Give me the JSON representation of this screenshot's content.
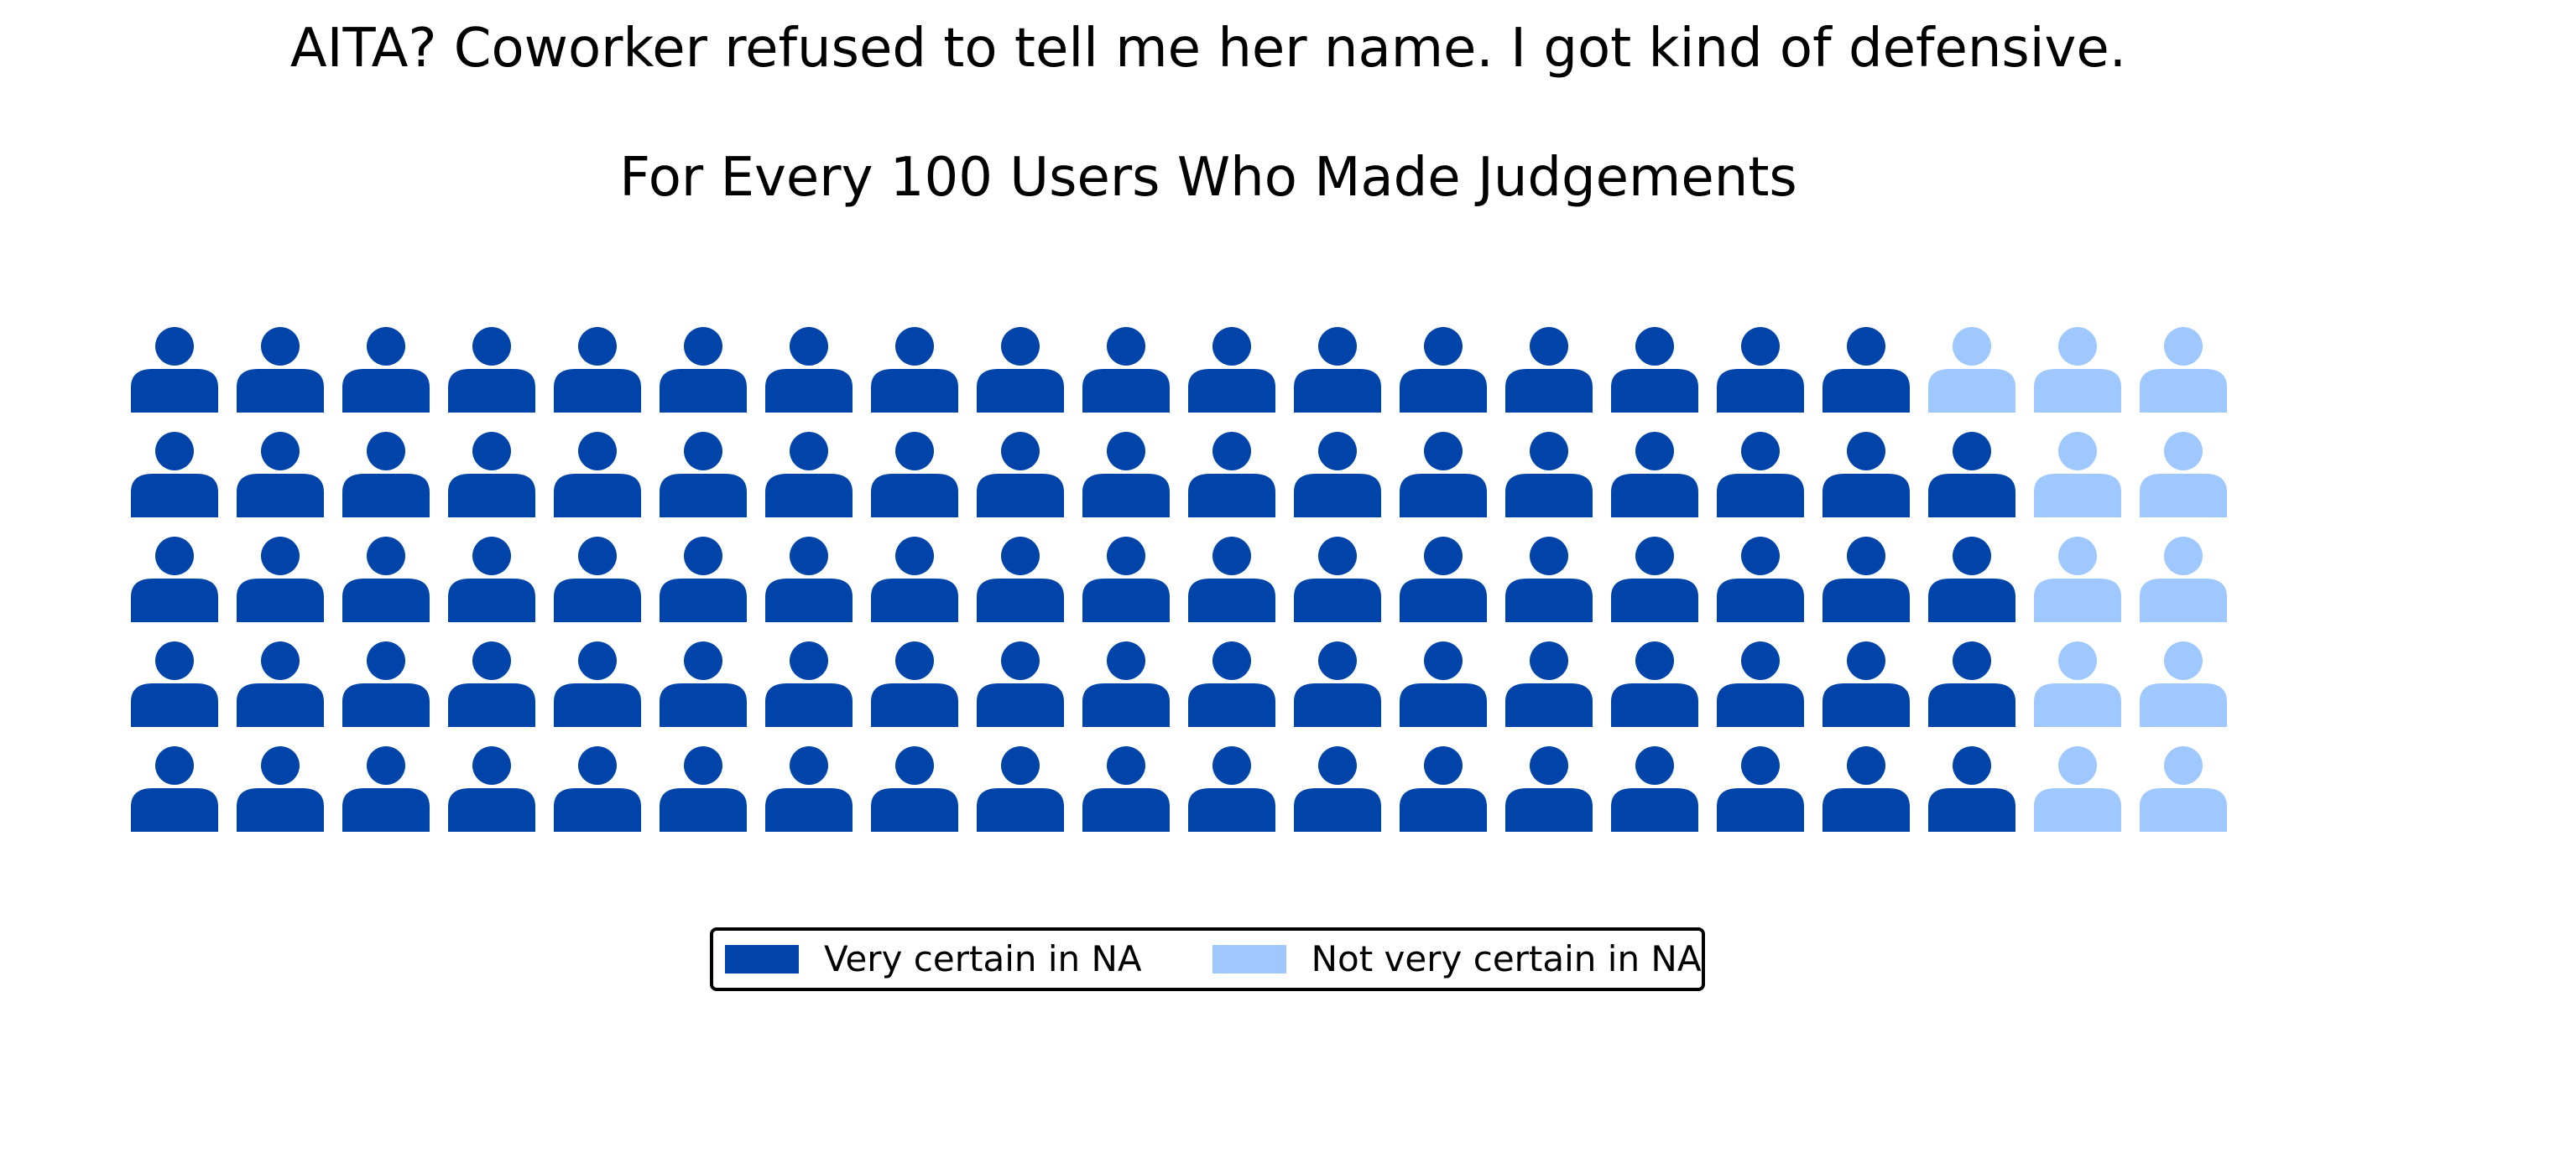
{
  "chart_data": {
    "type": "waffle",
    "title": "AITA? Coworker refused to tell me her name. I got kind of defensive.",
    "subtitle": "For Every 100 Users Who Made Judgements",
    "icon": "person-icon",
    "grid": {
      "rows": 5,
      "columns": 20
    },
    "total": 100,
    "series": [
      {
        "name": "Very certain in NA",
        "value": 89,
        "color": "#0044aa"
      },
      {
        "name": "Not very certain in NA",
        "value": 11,
        "color": "#9ec8ff"
      }
    ],
    "legend_position": "bottom-center"
  }
}
